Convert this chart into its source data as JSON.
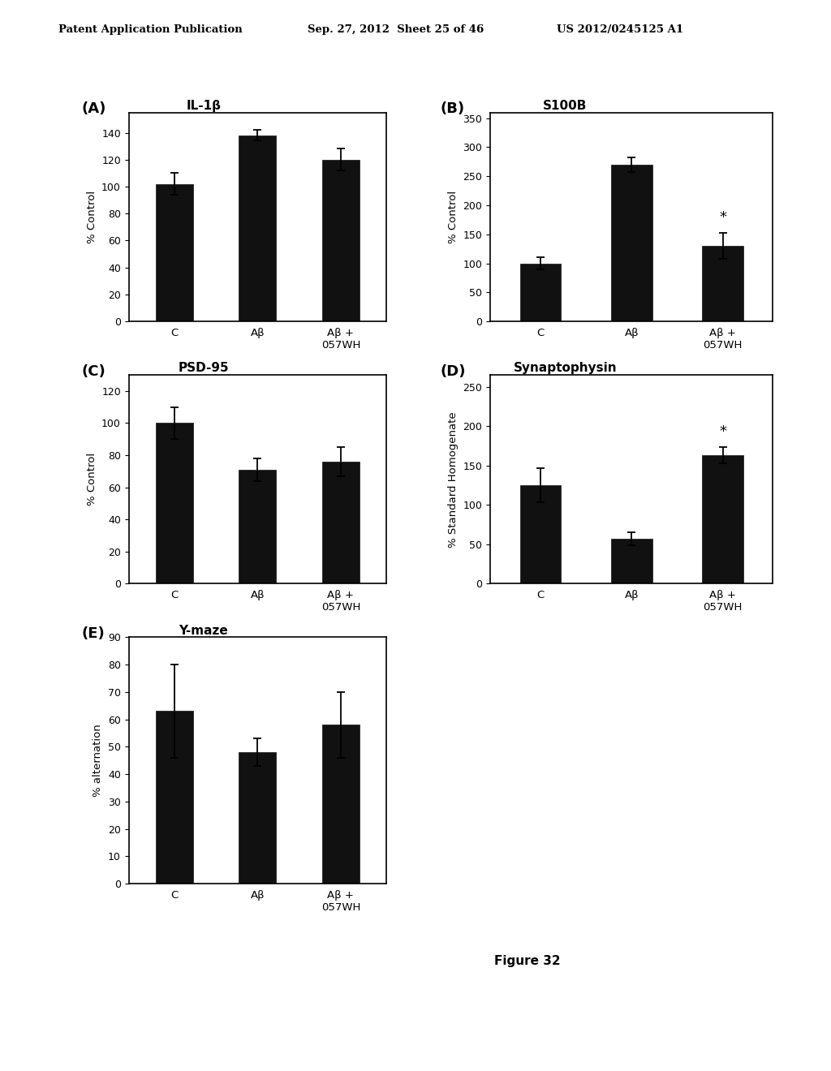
{
  "panel_A": {
    "title": "IL-1β",
    "label": "(A)",
    "ylabel": "% Control",
    "ylim": [
      0,
      155
    ],
    "yticks": [
      0,
      20,
      40,
      60,
      80,
      100,
      120,
      140
    ],
    "categories": [
      "C",
      "Aβ",
      "Aβ +\n057WH"
    ],
    "values": [
      102,
      138,
      120
    ],
    "errors": [
      8,
      4,
      8
    ],
    "star": [
      false,
      false,
      false
    ]
  },
  "panel_B": {
    "title": "S100B",
    "label": "(B)",
    "ylabel": "% Control",
    "ylim": [
      0,
      360
    ],
    "yticks": [
      0,
      50,
      100,
      150,
      200,
      250,
      300,
      350
    ],
    "categories": [
      "C",
      "Aβ",
      "Aβ +\n057WH"
    ],
    "values": [
      100,
      270,
      130
    ],
    "errors": [
      10,
      12,
      22
    ],
    "star": [
      false,
      false,
      true
    ]
  },
  "panel_C": {
    "title": "PSD-95",
    "label": "(C)",
    "ylabel": "% Control",
    "ylim": [
      0,
      130
    ],
    "yticks": [
      0,
      20,
      40,
      60,
      80,
      100,
      120
    ],
    "categories": [
      "C",
      "Aβ",
      "Aβ +\n057WH"
    ],
    "values": [
      100,
      71,
      76
    ],
    "errors": [
      10,
      7,
      9
    ],
    "star": [
      false,
      false,
      false
    ]
  },
  "panel_D": {
    "title": "Synaptophysin",
    "label": "(D)",
    "ylabel": "% Standard Homogenate",
    "ylim": [
      0,
      265
    ],
    "yticks": [
      0,
      50,
      100,
      150,
      200,
      250
    ],
    "categories": [
      "C",
      "Aβ",
      "Aβ +\n057WH"
    ],
    "values": [
      125,
      57,
      163
    ],
    "errors": [
      22,
      8,
      10
    ],
    "star": [
      false,
      false,
      true
    ]
  },
  "panel_E": {
    "title": "Y-maze",
    "label": "(E)",
    "ylabel": "% alternation",
    "ylim": [
      0,
      90
    ],
    "yticks": [
      0,
      10,
      20,
      30,
      40,
      50,
      60,
      70,
      80,
      90
    ],
    "categories": [
      "C",
      "Aβ",
      "Aβ +\n057WH"
    ],
    "values": [
      63,
      48,
      58
    ],
    "errors": [
      17,
      5,
      12
    ],
    "star": [
      false,
      false,
      false
    ]
  },
  "header_left": "Patent Application Publication",
  "header_mid": "Sep. 27, 2012  Sheet 25 of 46",
  "header_right": "US 2012/0245125 A1",
  "figure_label": "Figure 32",
  "bar_color": "#111111",
  "bg_color": "#ffffff"
}
